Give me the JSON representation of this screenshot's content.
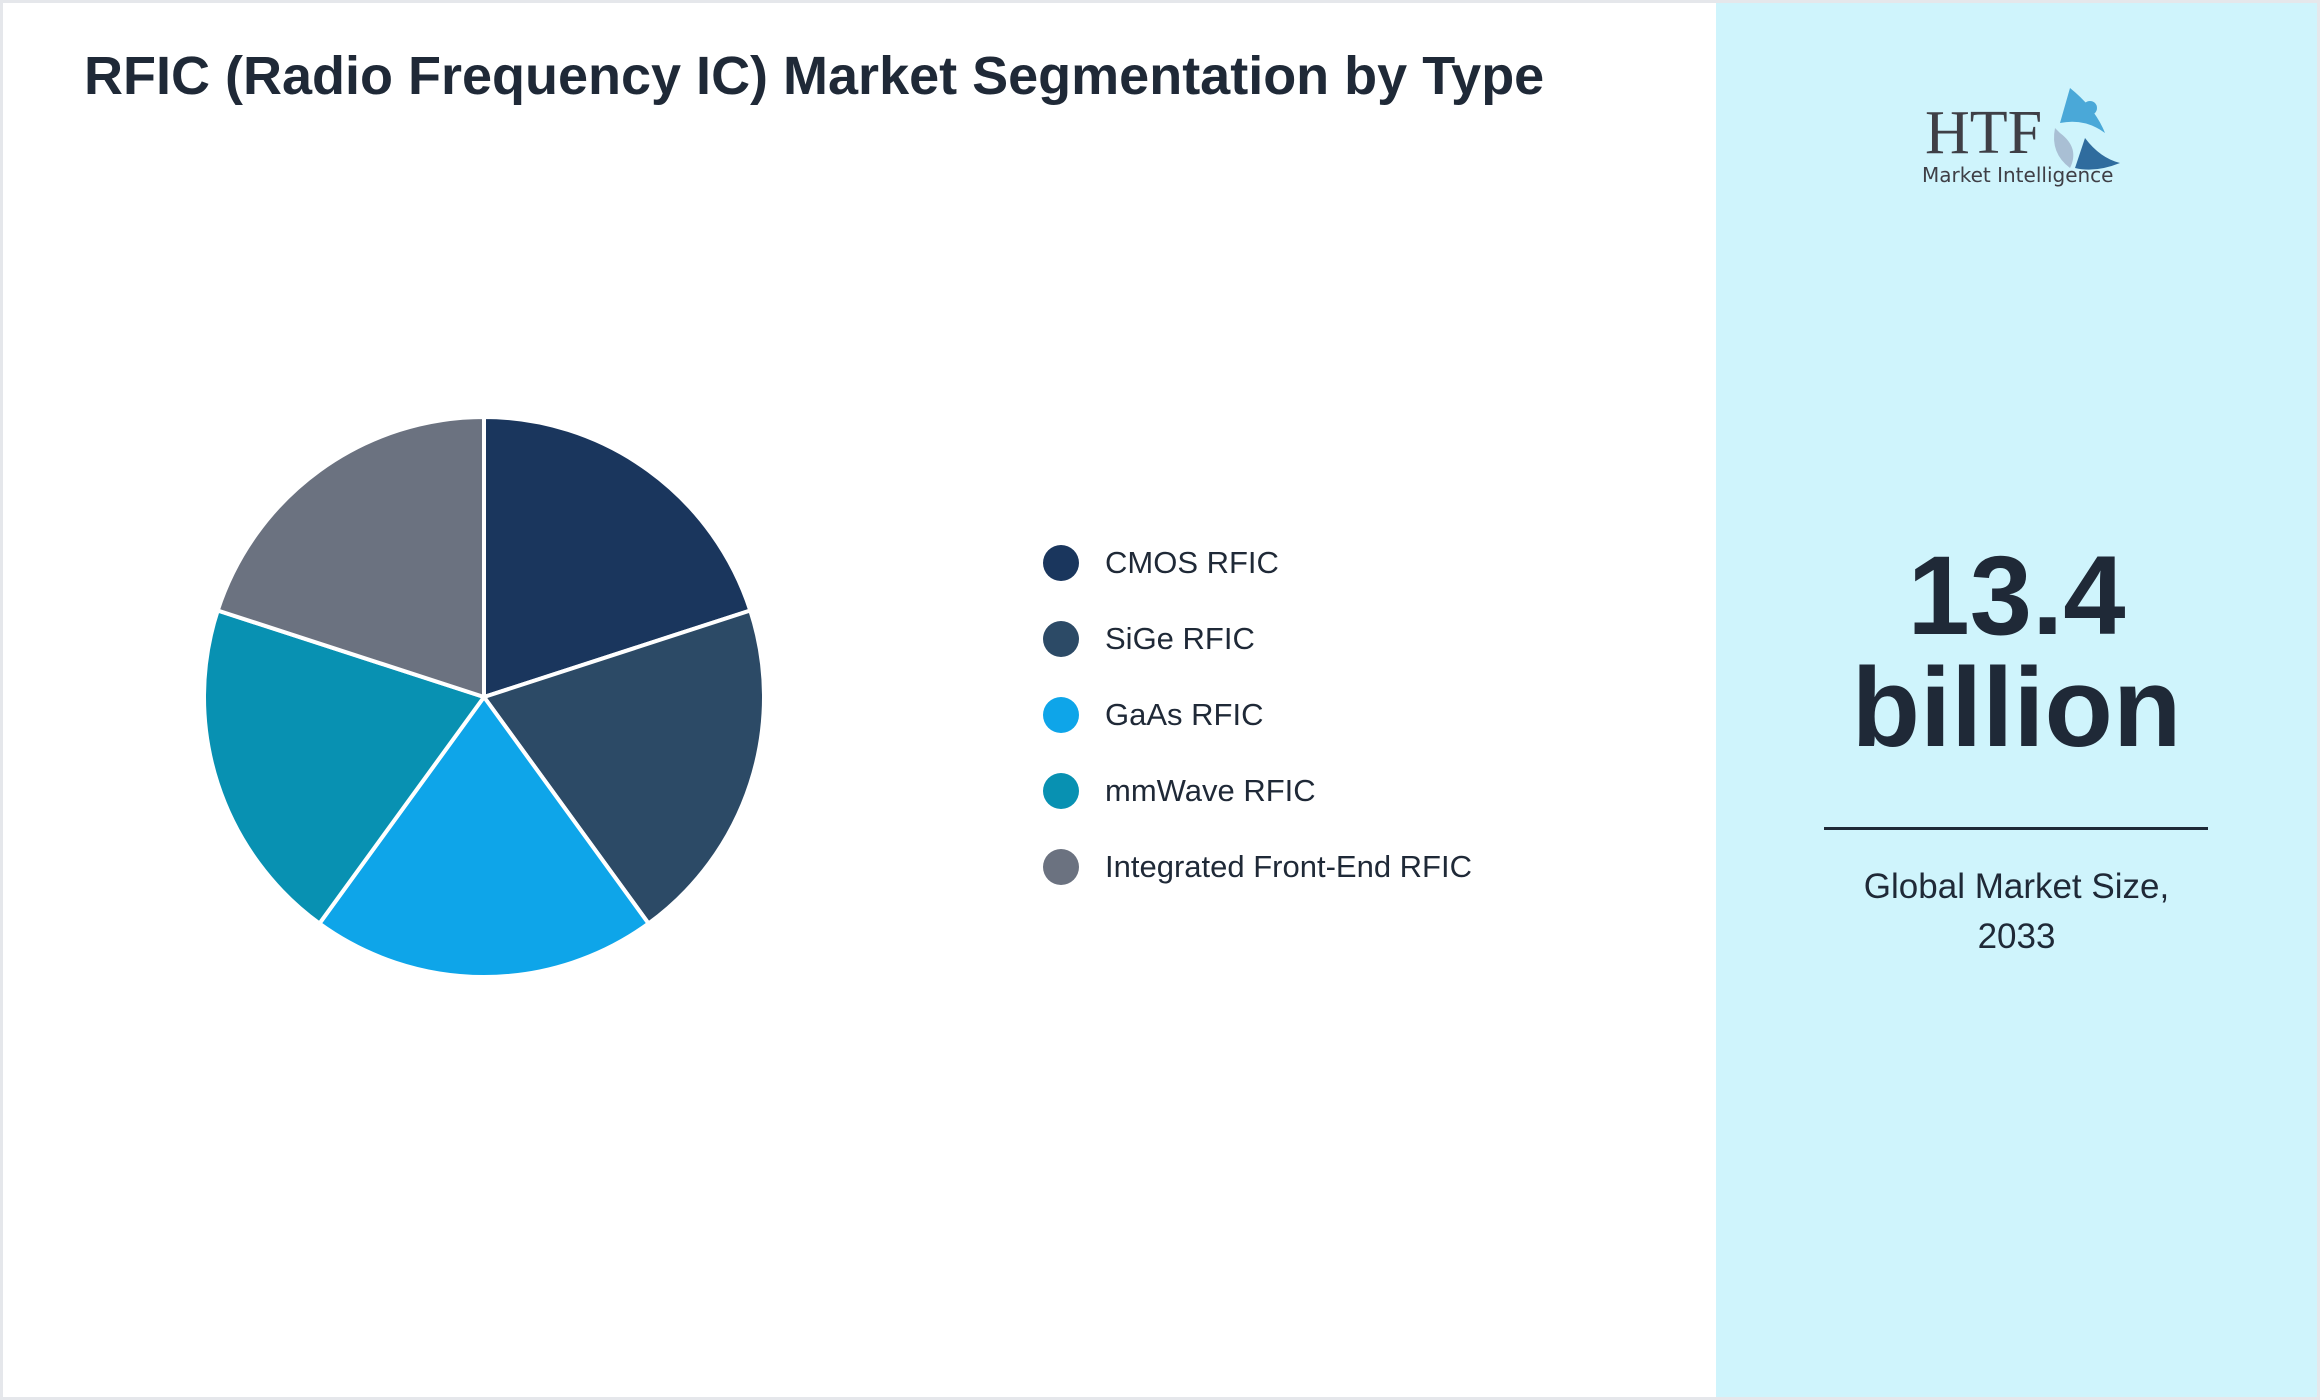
{
  "title": "RFIC (Radio Frequency IC) Market Segmentation by Type",
  "chart_data": {
    "type": "pie",
    "title": "RFIC (Radio Frequency IC) Market Segmentation by Type",
    "categories": [
      "CMOS RFIC",
      "SiGe RFIC",
      "GaAs RFIC",
      "mmWave RFIC",
      "Integrated Front-End RFIC"
    ],
    "values": [
      20,
      20,
      20,
      20,
      20
    ],
    "colors": [
      "#1a365d",
      "#2c4a66",
      "#0ea5e9",
      "#0891b2",
      "#6b7280"
    ],
    "legend": "right"
  },
  "stat": {
    "value_line1": "13.4",
    "value_line2": "billion",
    "caption_line1": "Global Market Size,",
    "caption_line2": "2033"
  },
  "logo": {
    "text": "HTF",
    "subtext": "Market Intelligence"
  },
  "colors": {
    "panel": "#cff4fc",
    "text": "#1f2937"
  }
}
